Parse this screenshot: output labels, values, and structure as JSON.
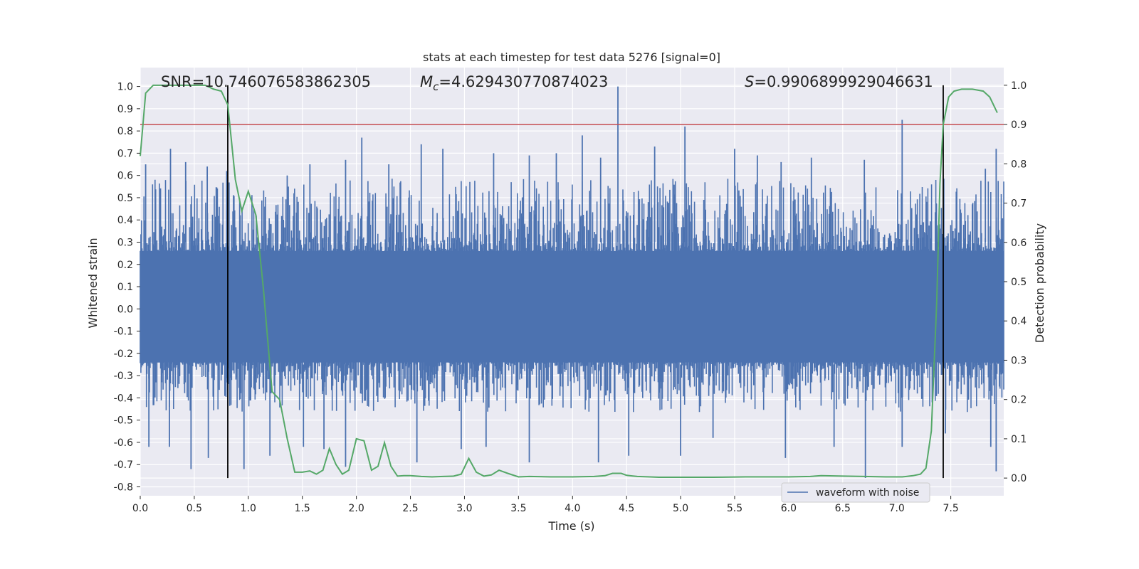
{
  "chart_data": {
    "type": "line",
    "title": "stats at each timestep for test data 5276 [signal=0]",
    "xlabel": "Time (s)",
    "ylabel_left": "Whitened strain",
    "ylabel_right": "Detection probability",
    "xlim": [
      0.0,
      7.99
    ],
    "ylim_left": [
      -0.84,
      1.085
    ],
    "ylim_right": [
      -0.045,
      1.045
    ],
    "x_ticks": [
      "0.0",
      "0.5",
      "1.0",
      "1.5",
      "2.0",
      "2.5",
      "3.0",
      "3.5",
      "4.0",
      "4.5",
      "5.0",
      "5.5",
      "6.0",
      "6.5",
      "7.0",
      "7.5"
    ],
    "y_left_ticks": [
      "-0.8",
      "-0.7",
      "-0.6",
      "-0.5",
      "-0.4",
      "-0.3",
      "-0.2",
      "-0.1",
      "0.0",
      "0.1",
      "0.2",
      "0.3",
      "0.4",
      "0.5",
      "0.6",
      "0.7",
      "0.8",
      "0.9",
      "1.0"
    ],
    "y_right_ticks": [
      "0.0",
      "0.1",
      "0.2",
      "0.3",
      "0.4",
      "0.5",
      "0.6",
      "0.7",
      "0.8",
      "0.9",
      "1.0"
    ],
    "grid": true,
    "legend_position": "bottom-right",
    "annotations": {
      "snr": "SNR=10.746076583862305",
      "mc_symbol": "M",
      "mc_sub": "c",
      "mc_value": "=4.629430770874023",
      "s_symbol": "S",
      "s_value": "=0.9906899929046631"
    },
    "threshold_right": 0.9,
    "vertical_markers_x": [
      0.81,
      7.43
    ],
    "series": [
      {
        "name": "waveform with noise",
        "axis": "left",
        "color": "#4c72b0",
        "envelope_upper": 0.47,
        "envelope_lower": -0.38,
        "spikes_upper": [
          [
            0.05,
            0.65
          ],
          [
            0.28,
            0.72
          ],
          [
            0.42,
            0.66
          ],
          [
            0.62,
            0.64
          ],
          [
            0.8,
            0.62
          ],
          [
            1.36,
            0.6
          ],
          [
            1.57,
            0.65
          ],
          [
            1.9,
            0.67
          ],
          [
            2.05,
            0.77
          ],
          [
            2.3,
            0.65
          ],
          [
            2.6,
            0.74
          ],
          [
            2.8,
            0.72
          ],
          [
            3.27,
            0.7
          ],
          [
            3.6,
            0.69
          ],
          [
            3.85,
            0.7
          ],
          [
            4.09,
            0.78
          ],
          [
            4.26,
            0.68
          ],
          [
            4.42,
            1.0
          ],
          [
            4.76,
            0.73
          ],
          [
            5.04,
            0.82
          ],
          [
            5.5,
            0.72
          ],
          [
            5.71,
            0.69
          ],
          [
            5.93,
            0.66
          ],
          [
            6.21,
            0.68
          ],
          [
            6.7,
            0.67
          ],
          [
            7.05,
            0.85
          ],
          [
            7.82,
            0.63
          ],
          [
            7.92,
            0.72
          ]
        ],
        "spikes_lower": [
          [
            0.08,
            -0.62
          ],
          [
            0.27,
            -0.62
          ],
          [
            0.47,
            -0.72
          ],
          [
            0.63,
            -0.67
          ],
          [
            0.96,
            -0.72
          ],
          [
            1.2,
            -0.66
          ],
          [
            1.51,
            -0.62
          ],
          [
            1.7,
            -0.63
          ],
          [
            1.9,
            -0.71
          ],
          [
            2.56,
            -0.69
          ],
          [
            2.97,
            -0.63
          ],
          [
            3.2,
            -0.62
          ],
          [
            3.6,
            -0.69
          ],
          [
            4.24,
            -0.69
          ],
          [
            4.52,
            -0.66
          ],
          [
            5.0,
            -0.66
          ],
          [
            5.3,
            -0.58
          ],
          [
            5.97,
            -0.67
          ],
          [
            6.42,
            -0.62
          ],
          [
            6.71,
            -0.76
          ],
          [
            7.05,
            -0.62
          ],
          [
            7.45,
            -0.56
          ],
          [
            7.87,
            -0.62
          ],
          [
            7.92,
            -0.73
          ]
        ]
      },
      {
        "name": "",
        "axis": "right",
        "color": "#55a868",
        "x": [
          0.0,
          0.05,
          0.12,
          0.2,
          0.3,
          0.4,
          0.5,
          0.6,
          0.68,
          0.75,
          0.81,
          0.88,
          0.94,
          1.0,
          1.07,
          1.14,
          1.22,
          1.29,
          1.36,
          1.43,
          1.5,
          1.57,
          1.63,
          1.69,
          1.75,
          1.81,
          1.87,
          1.93,
          2.0,
          2.07,
          2.14,
          2.2,
          2.26,
          2.32,
          2.38,
          2.44,
          2.5,
          2.6,
          2.7,
          2.8,
          2.9,
          2.97,
          3.04,
          3.11,
          3.18,
          3.25,
          3.32,
          3.4,
          3.5,
          3.6,
          3.8,
          4.0,
          4.2,
          4.3,
          4.37,
          4.45,
          4.5,
          4.6,
          4.8,
          5.0,
          5.3,
          5.6,
          5.8,
          6.0,
          6.2,
          6.3,
          6.5,
          6.7,
          6.9,
          7.05,
          7.15,
          7.22,
          7.27,
          7.32,
          7.37,
          7.4,
          7.43,
          7.48,
          7.53,
          7.6,
          7.7,
          7.8,
          7.86,
          7.93
        ],
        "y": [
          0.82,
          0.98,
          1.0,
          1.0,
          1.0,
          1.0,
          1.0,
          1.0,
          0.99,
          0.985,
          0.95,
          0.76,
          0.68,
          0.73,
          0.67,
          0.48,
          0.22,
          0.2,
          0.1,
          0.015,
          0.015,
          0.018,
          0.01,
          0.02,
          0.075,
          0.035,
          0.01,
          0.02,
          0.1,
          0.095,
          0.02,
          0.03,
          0.09,
          0.03,
          0.005,
          0.006,
          0.006,
          0.004,
          0.003,
          0.004,
          0.005,
          0.01,
          0.05,
          0.015,
          0.005,
          0.008,
          0.02,
          0.012,
          0.003,
          0.004,
          0.003,
          0.003,
          0.004,
          0.006,
          0.012,
          0.012,
          0.007,
          0.004,
          0.002,
          0.002,
          0.002,
          0.003,
          0.003,
          0.003,
          0.004,
          0.006,
          0.005,
          0.004,
          0.003,
          0.003,
          0.006,
          0.01,
          0.025,
          0.12,
          0.45,
          0.75,
          0.9,
          0.97,
          0.985,
          0.99,
          0.99,
          0.985,
          0.97,
          0.93
        ]
      },
      {
        "name": "",
        "axis": "right",
        "color": "#c44e52",
        "type": "hline",
        "y": 0.9
      }
    ]
  }
}
